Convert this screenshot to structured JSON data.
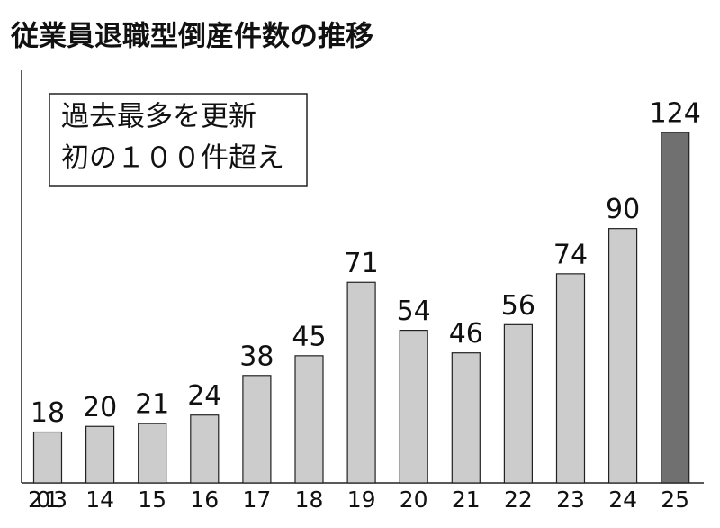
{
  "chart_data": {
    "type": "bar",
    "title": "従業員退職型倒産件数の推移",
    "annotation": [
      "過去最多を更新",
      "初の１００件超え"
    ],
    "categories": [
      "2013",
      "14",
      "15",
      "16",
      "17",
      "18",
      "19",
      "20",
      "21",
      "22",
      "23",
      "24",
      "25"
    ],
    "values": [
      18,
      20,
      21,
      24,
      38,
      45,
      71,
      54,
      46,
      56,
      74,
      90,
      124
    ],
    "colors": [
      "#cccccc",
      "#cccccc",
      "#cccccc",
      "#cccccc",
      "#cccccc",
      "#cccccc",
      "#cccccc",
      "#cccccc",
      "#cccccc",
      "#cccccc",
      "#cccccc",
      "#cccccc",
      "#707070"
    ]
  }
}
